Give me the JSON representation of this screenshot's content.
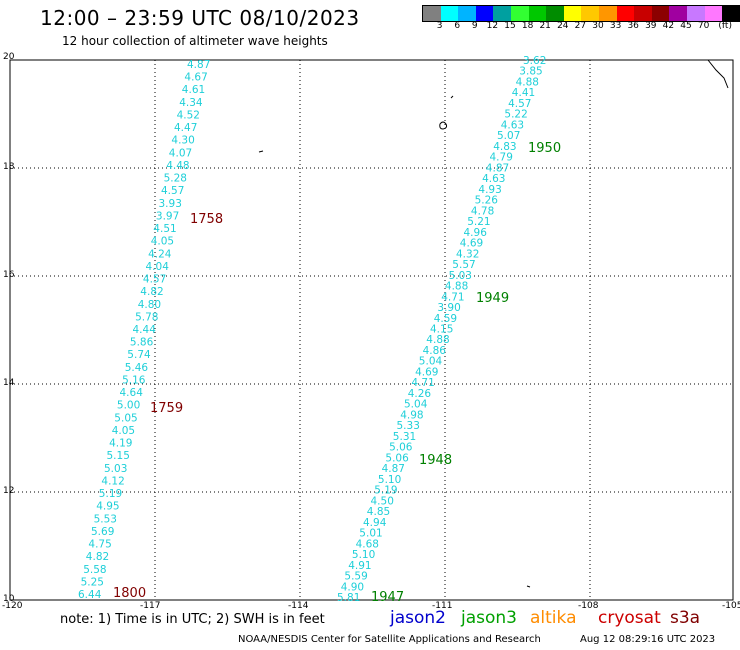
{
  "header": {
    "title": "12:00 – 23:59 UTC 08/10/2023",
    "subtitle": "12 hour collection of altimeter wave heights"
  },
  "legend": {
    "colors": [
      "#808080",
      "#00ffff",
      "#00b4ff",
      "#0000ff",
      "#00a0a0",
      "#32ff32",
      "#00c800",
      "#008c00",
      "#ffff00",
      "#ffc800",
      "#ff9600",
      "#ff0000",
      "#c80000",
      "#8c0000",
      "#a000a0",
      "#c878ff",
      "#ff78ff",
      "#000000"
    ],
    "labels": [
      "3",
      "6",
      "9",
      "12",
      "15",
      "18",
      "21",
      "24",
      "27",
      "30",
      "33",
      "36",
      "39",
      "42",
      "45",
      "70",
      "(ft)"
    ]
  },
  "axes": {
    "x_ticks": [
      "-120",
      "-117",
      "-114",
      "-111",
      "-108",
      "-105"
    ],
    "y_ticks": [
      "20",
      "18",
      "16",
      "14",
      "12",
      "10"
    ]
  },
  "tracks": [
    {
      "id": "west",
      "color": "#1ecfd8",
      "values": [
        "4.87",
        "4.67",
        "4.61",
        "4.34",
        "4.52",
        "4.47",
        "4.30",
        "4.07",
        "4.48",
        "5.28",
        "4.57",
        "3.93",
        "3.97",
        "4.51",
        "4.05",
        "4.24",
        "4.04",
        "4.57",
        "4.82",
        "4.80",
        "5.78",
        "4.44",
        "5.86",
        "5.74",
        "5.46",
        "5.16",
        "4.64",
        "5.00",
        "5.05",
        "4.05",
        "4.19",
        "5.15",
        "5.03",
        "4.12",
        "5.19",
        "4.95",
        "5.53",
        "5.69",
        "4.75",
        "4.82",
        "5.58",
        "5.25",
        "6.44"
      ]
    },
    {
      "id": "east",
      "color": "#1ecfd8",
      "values": [
        "3.62",
        "3.85",
        "4.88",
        "4.41",
        "4.57",
        "5.22",
        "4.63",
        "5.07",
        "4.83",
        "4.79",
        "4.87",
        "4.63",
        "4.93",
        "5.26",
        "4.78",
        "5.21",
        "4.96",
        "4.69",
        "4.32",
        "5.57",
        "5.03",
        "4.88",
        "4.71",
        "3.90",
        "4.59",
        "4.15",
        "4.88",
        "4.86",
        "5.04",
        "4.69",
        "4.71",
        "4.26",
        "5.04",
        "4.98",
        "5.33",
        "5.31",
        "5.06",
        "5.06",
        "4.87",
        "5.10",
        "5.19",
        "4.50",
        "4.85",
        "4.94",
        "5.01",
        "4.68",
        "5.10",
        "4.91",
        "5.59",
        "4.90",
        "5.81"
      ]
    }
  ],
  "time_labels": [
    {
      "text": "1758",
      "color": "#800000"
    },
    {
      "text": "1759",
      "color": "#800000"
    },
    {
      "text": "1800",
      "color": "#800000"
    },
    {
      "text": "1950",
      "color": "#008000"
    },
    {
      "text": "1949",
      "color": "#008000"
    },
    {
      "text": "1948",
      "color": "#008000"
    },
    {
      "text": "1947",
      "color": "#008000"
    }
  ],
  "note": "note: 1) Time is in UTC; 2) SWH is in feet",
  "satellites": [
    {
      "name": "jason2",
      "color": "#0000cc"
    },
    {
      "name": "jason3",
      "color": "#00a000"
    },
    {
      "name": "altika",
      "color": "#ff8c00"
    },
    {
      "name": "cryosat",
      "color": "#cc0000"
    },
    {
      "name": "s3a",
      "color": "#800000"
    }
  ],
  "footer": {
    "source": "NOAA/NESDIS Center for Satellite Applications and Research",
    "timestamp": "Aug 12 08:29:16 UTC 2023"
  }
}
